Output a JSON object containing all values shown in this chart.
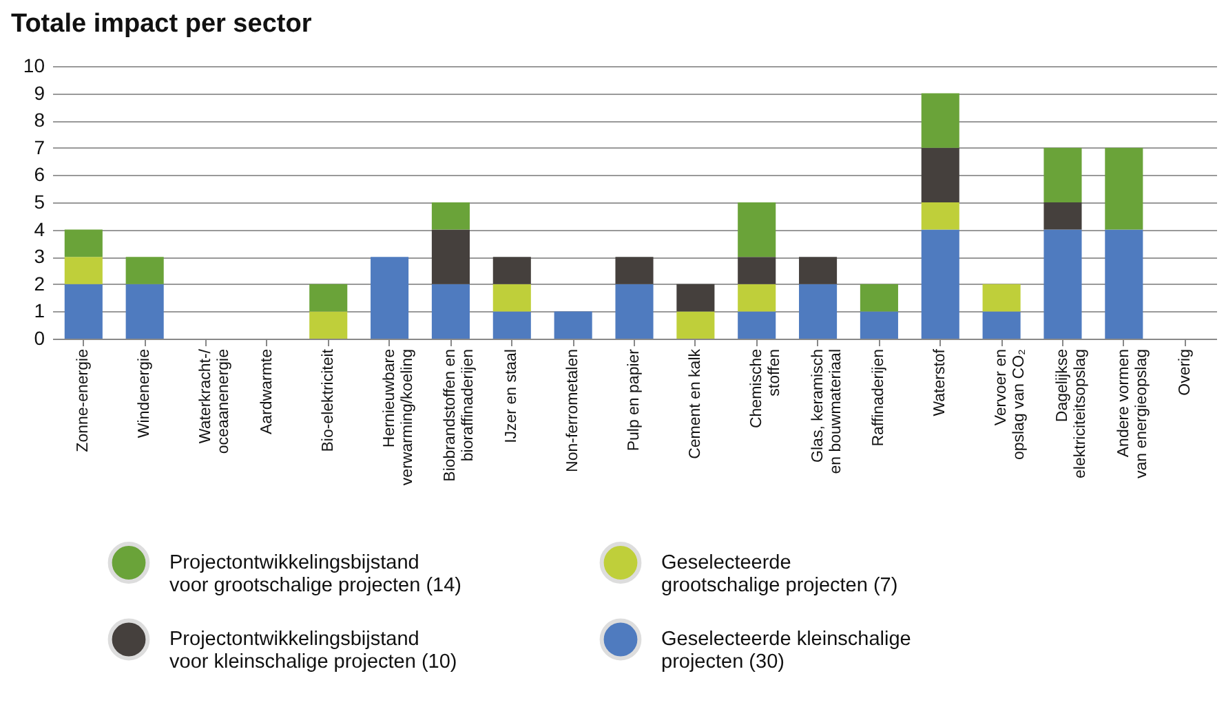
{
  "chart_data": {
    "type": "bar",
    "title": "Totale impact per sector",
    "stacked": true,
    "categories": [
      "Zonne-energie",
      "Windenergie",
      "Waterkracht-/ oceaanenergie",
      "Aardwarmte",
      "Bio-elektriciteit",
      "Hernieuwbare verwarming/koeling",
      "Biobrandstoffen en bioraffinaderijen",
      "IJzer en staal",
      "Non-ferrometalen",
      "Pulp en papier",
      "Cement en kalk",
      "Chemische stoffen",
      "Glas, keramisch en bouwmateriaal",
      "Raffinaderijen",
      "Waterstof",
      "Vervoer en opslag van CO₂",
      "Dagelijkse elektriciteitsopslag",
      "Andere vormen van energieopslag",
      "Overig"
    ],
    "series": [
      {
        "name": "Geselecteerde kleinschalige projecten (30)",
        "color": "#4f7bbf",
        "values": [
          2,
          2,
          0,
          0,
          0,
          3,
          2,
          1,
          1,
          2,
          0,
          1,
          2,
          1,
          4,
          1,
          4,
          4,
          0
        ]
      },
      {
        "name": "Geselecteerde grootschalige projecten (7)",
        "color": "#bfcf3a",
        "values": [
          1,
          0,
          0,
          0,
          1,
          0,
          0,
          1,
          0,
          0,
          1,
          1,
          0,
          0,
          1,
          1,
          0,
          0,
          0
        ]
      },
      {
        "name": "Projectontwikkelingsbijstand voor kleinschalige projecten (10)",
        "color": "#45403d",
        "values": [
          0,
          0,
          0,
          0,
          0,
          0,
          2,
          1,
          0,
          1,
          1,
          1,
          1,
          0,
          2,
          0,
          1,
          0,
          0
        ]
      },
      {
        "name": "Projectontwikkelingsbijstand voor grootschalige projecten (14)",
        "color": "#6aa339",
        "values": [
          1,
          1,
          0,
          0,
          1,
          0,
          1,
          0,
          0,
          0,
          0,
          2,
          0,
          1,
          2,
          0,
          2,
          3,
          0
        ]
      }
    ],
    "ylim": [
      0,
      10
    ],
    "yticks": [
      0,
      1,
      2,
      3,
      4,
      5,
      6,
      7,
      8,
      9,
      10
    ],
    "grid": "y",
    "legend": "bottom"
  }
}
